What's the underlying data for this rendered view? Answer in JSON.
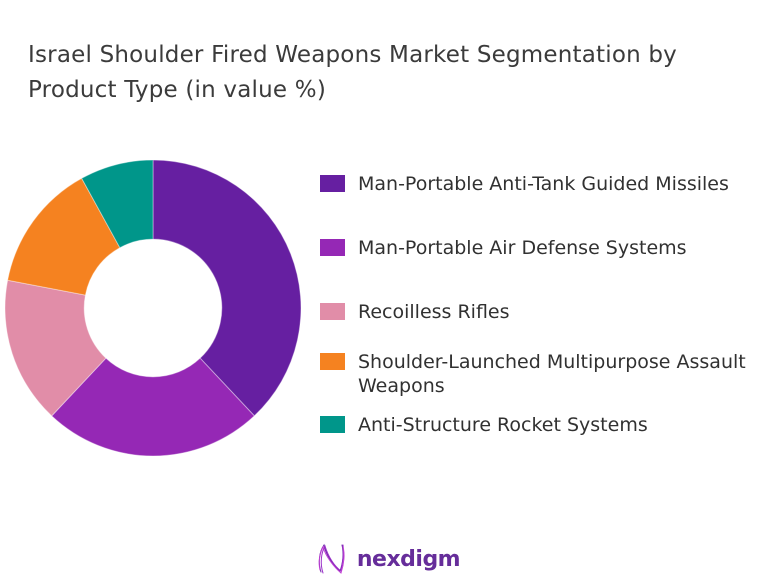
{
  "title": "Israel Shoulder Fired Weapons Market Segmentation by Product Type (in value %)",
  "chart_data": {
    "type": "pie",
    "subtype": "donut",
    "title": "Israel Shoulder Fired Weapons Market Segmentation by Product Type (in value %)",
    "unit": "value %",
    "direction": "clockwise",
    "start_angle_deg": 0,
    "donut_hole_ratio": 0.465,
    "legend_position": "right",
    "data_labels_shown": false,
    "segments": [
      {
        "label": "Man-Portable Anti-Tank Guided Missiles",
        "value": 38,
        "color": "#661FA1"
      },
      {
        "label": "Man-Portable Air Defense Systems",
        "value": 24,
        "color": "#9528B5"
      },
      {
        "label": "Recoilless Rifles",
        "value": 16,
        "color": "#E18DA8"
      },
      {
        "label": "Shoulder-Launched Multipurpose Assault Weapons",
        "value": 14,
        "color": "#F58220"
      },
      {
        "label": "Anti-Structure Rocket Systems",
        "value": 8,
        "color": "#00968A"
      }
    ]
  },
  "logo": {
    "text": "nexdigm",
    "brand_color": "#662D9A",
    "icon": "nexdigm-squiggle-n-icon",
    "icon_colors": [
      "#6A24A8",
      "#9B30C9",
      "#C13FD4"
    ]
  }
}
